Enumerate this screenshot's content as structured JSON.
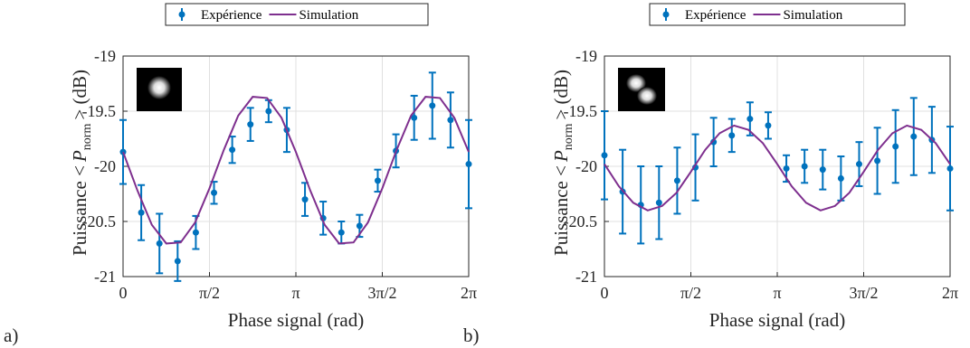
{
  "chart_data": [
    {
      "type": "errorbar-line",
      "panel_label": "a)",
      "xlabel": "Phase signal (rad)",
      "ylabel": [
        "Puissance <",
        "P",
        "norm",
        "> (dB)"
      ],
      "xlim": [
        0,
        6.2832
      ],
      "ylim": [
        -21,
        -19
      ],
      "xticks": [
        0,
        {
          "value": 1.5708,
          "label": "π/2"
        },
        {
          "value": 3.1416,
          "label": "π"
        },
        {
          "value": 4.7124,
          "label": "3π/2"
        },
        {
          "value": 6.2832,
          "label": "2π"
        }
      ],
      "yticks": [
        -21,
        -20.5,
        -20,
        -19.5,
        -19
      ],
      "grid": true,
      "legend": "top",
      "series": [
        {
          "name": "Expérience",
          "color": "#0072bd",
          "x": [
            0,
            0.3307,
            0.6614,
            0.9921,
            1.3228,
            1.6535,
            1.9842,
            2.3149,
            2.6456,
            2.9762,
            3.3069,
            3.6376,
            3.9683,
            4.299,
            4.6297,
            4.9604,
            5.2911,
            5.6218,
            5.9525,
            6.2832
          ],
          "values": [
            -19.87,
            -20.42,
            -20.7,
            -20.86,
            -20.6,
            -20.24,
            -19.85,
            -19.62,
            -19.5,
            -19.67,
            -20.3,
            -20.47,
            -20.6,
            -20.54,
            -20.13,
            -19.86,
            -19.56,
            -19.45,
            -19.58,
            -19.98
          ],
          "errors": [
            0.29,
            0.25,
            0.27,
            0.18,
            0.15,
            0.1,
            0.12,
            0.15,
            0.1,
            0.2,
            0.15,
            0.15,
            0.1,
            0.1,
            0.1,
            0.15,
            0.2,
            0.3,
            0.25,
            0.4
          ]
        },
        {
          "name": "Simulation",
          "color": "#7e2f8e",
          "x": [
            0,
            0.2618,
            0.5236,
            0.7854,
            1.0472,
            1.309,
            1.5708,
            1.8326,
            2.0944,
            2.3562,
            2.618,
            2.8798,
            3.1416,
            3.4034,
            3.6652,
            3.927,
            4.1888,
            4.4506,
            4.7124,
            4.9742,
            5.236,
            5.4978,
            5.7596,
            6.0214,
            6.2832
          ],
          "values": [
            -19.87,
            -20.22,
            -20.53,
            -20.7,
            -20.69,
            -20.51,
            -20.2,
            -19.85,
            -19.54,
            -19.37,
            -19.38,
            -19.56,
            -19.87,
            -20.22,
            -20.53,
            -20.7,
            -20.69,
            -20.51,
            -20.2,
            -19.85,
            -19.54,
            -19.37,
            -19.38,
            -19.56,
            -19.87
          ]
        }
      ]
    },
    {
      "type": "errorbar-line",
      "panel_label": "b)",
      "xlabel": "Phase signal (rad)",
      "ylabel": [
        "Puissance <",
        "P",
        "norm",
        "> (dB)"
      ],
      "xlim": [
        0,
        6.2832
      ],
      "ylim": [
        -21,
        -19
      ],
      "xticks": [
        0,
        {
          "value": 1.5708,
          "label": "π/2"
        },
        {
          "value": 3.1416,
          "label": "π"
        },
        {
          "value": 4.7124,
          "label": "3π/2"
        },
        {
          "value": 6.2832,
          "label": "2π"
        }
      ],
      "yticks": [
        -21,
        -20.5,
        -20,
        -19.5,
        -19
      ],
      "grid": true,
      "legend": "top",
      "series": [
        {
          "name": "Expérience",
          "color": "#0072bd",
          "x": [
            0,
            0.3307,
            0.6614,
            0.9921,
            1.3228,
            1.6535,
            1.9842,
            2.3149,
            2.6456,
            2.9762,
            3.3069,
            3.6376,
            3.9683,
            4.299,
            4.6297,
            4.9604,
            5.2911,
            5.6218,
            5.9525,
            6.2832
          ],
          "values": [
            -19.9,
            -20.23,
            -20.35,
            -20.33,
            -20.13,
            -20.01,
            -19.78,
            -19.72,
            -19.57,
            -19.63,
            -20.02,
            -20.0,
            -20.03,
            -20.11,
            -19.98,
            -19.95,
            -19.82,
            -19.73,
            -19.76,
            -20.02
          ],
          "errors": [
            0.4,
            0.38,
            0.35,
            0.33,
            0.3,
            0.3,
            0.22,
            0.15,
            0.15,
            0.12,
            0.12,
            0.15,
            0.18,
            0.2,
            0.2,
            0.3,
            0.33,
            0.35,
            0.3,
            0.38
          ]
        },
        {
          "name": "Simulation",
          "color": "#7e2f8e",
          "x": [
            0,
            0.2618,
            0.5236,
            0.7854,
            1.0472,
            1.309,
            1.5708,
            1.8326,
            2.0944,
            2.3562,
            2.618,
            2.8798,
            3.1416,
            3.4034,
            3.6652,
            3.927,
            4.1888,
            4.4506,
            4.7124,
            4.9742,
            5.236,
            5.4978,
            5.7596,
            6.0214,
            6.2832
          ],
          "values": [
            -19.98,
            -20.18,
            -20.33,
            -20.4,
            -20.36,
            -20.24,
            -20.05,
            -19.85,
            -19.7,
            -19.63,
            -19.67,
            -19.79,
            -19.98,
            -20.18,
            -20.33,
            -20.4,
            -20.36,
            -20.24,
            -20.05,
            -19.85,
            -19.7,
            -19.63,
            -19.67,
            -19.79,
            -19.98
          ]
        }
      ]
    }
  ]
}
